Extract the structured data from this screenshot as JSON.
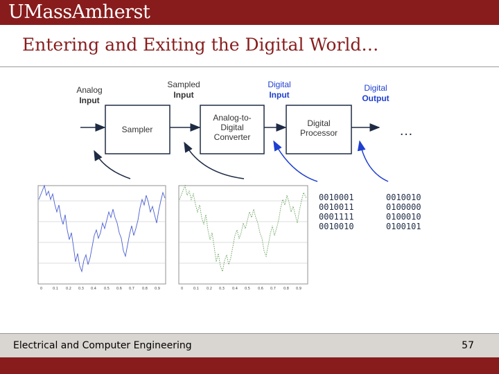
{
  "header": {
    "logo": "UMassAmherst",
    "title": "Entering and Exiting the Digital World…"
  },
  "diagram": {
    "labels": {
      "analog_input_1": "Analog",
      "analog_input_2": "Input",
      "sampled_input_1": "Sampled",
      "sampled_input_2": "Input",
      "digital_input_1": "Digital",
      "digital_input_2": "Input",
      "digital_output_1": "Digital",
      "digital_output_2": "Output",
      "ellipsis": "…"
    },
    "blocks": {
      "sampler": "Sampler",
      "adc_1": "Analog-to-",
      "adc_2": "Digital",
      "adc_3": "Converter",
      "dp_1": "Digital",
      "dp_2": "Processor"
    },
    "binary_input": [
      "0010001",
      "0010011",
      "0001111",
      "0010010"
    ],
    "binary_output": [
      "0010010",
      "0100000",
      "0100010",
      "0100101"
    ],
    "colors": {
      "blue": "#1f3fd0",
      "dark": "#1e2b44"
    }
  },
  "footer": {
    "text": "Electrical and Computer Engineering",
    "page": "57"
  }
}
